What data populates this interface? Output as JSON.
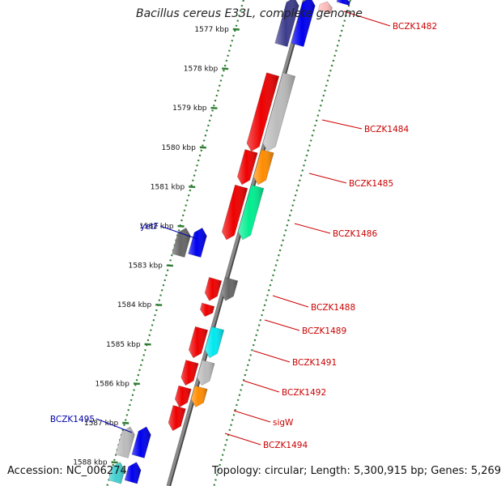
{
  "title": "Bacillus cereus E33L, complete genome",
  "footer": {
    "accession": "Accession: NC_006274",
    "topology": "Topology: circular; Length: 5,300,915 bp; Genes: 5,269"
  },
  "colors": {
    "background": "#ffffff",
    "backbone": "#8a8a8a",
    "tick": "#2e7d32",
    "gene_label_red": "#cc0000",
    "gene_label_blue": "#0000aa"
  },
  "kbp_ticks": [
    "1577 kbp",
    "1578 kbp",
    "1579 kbp",
    "1580 kbp",
    "1581 kbp",
    "1582 kbp",
    "1583 kbp",
    "1584 kbp",
    "1585 kbp",
    "1586 kbp",
    "1587 kbp",
    "1588 kbp"
  ],
  "gene_labels": [
    {
      "text": "BCZK1482",
      "color": "red"
    },
    {
      "text": "BCZK1484",
      "color": "red"
    },
    {
      "text": "BCZK1485",
      "color": "red"
    },
    {
      "text": "BCZK1486",
      "color": "red"
    },
    {
      "text": "BCZK1488",
      "color": "red"
    },
    {
      "text": "BCZK1489",
      "color": "red"
    },
    {
      "text": "BCZK1491",
      "color": "red"
    },
    {
      "text": "BCZK1492",
      "color": "red"
    },
    {
      "text": "sigW",
      "color": "red"
    },
    {
      "text": "BCZK1494",
      "color": "red"
    },
    {
      "text": "yetF",
      "color": "blue"
    },
    {
      "text": "BCZK1495",
      "color": "blue"
    }
  ],
  "features": [
    {
      "lane": "rev",
      "from": 1576.2,
      "to": 1577.4,
      "color": "#3c3c8c",
      "dir": "up"
    },
    {
      "lane": "fwd",
      "from": 1576.2,
      "to": 1577.4,
      "color": "#0000ee",
      "dir": "up"
    },
    {
      "lane": "outer",
      "from": 1576.2,
      "to": 1576.35,
      "color": "#0000ee",
      "dir": "up"
    },
    {
      "lane": "outer2",
      "from": 1576.3,
      "to": 1576.55,
      "color": "#ffbcbc",
      "dir": "up"
    },
    {
      "lane": "rev",
      "from": 1578.15,
      "to": 1580.1,
      "color": "#ee0000",
      "dir": "down"
    },
    {
      "lane": "fwd",
      "from": 1578.15,
      "to": 1580.1,
      "color": "#bbbbbb",
      "dir": "down"
    },
    {
      "lane": "rev",
      "from": 1580.1,
      "to": 1580.95,
      "color": "#ee0000",
      "dir": "down"
    },
    {
      "lane": "fwd",
      "from": 1580.1,
      "to": 1580.95,
      "color": "#ff8c00",
      "dir": "down"
    },
    {
      "lane": "rev",
      "from": 1581.0,
      "to": 1582.35,
      "color": "#ee0000",
      "dir": "down"
    },
    {
      "lane": "fwd",
      "from": 1581.0,
      "to": 1582.35,
      "color": "#00ee90",
      "dir": "down"
    },
    {
      "lane": "out_rev",
      "from": 1582.05,
      "to": 1582.75,
      "color": "#666666",
      "dir": "up"
    },
    {
      "lane": "out_fwd",
      "from": 1582.05,
      "to": 1582.75,
      "color": "#0000ee",
      "dir": "up"
    },
    {
      "lane": "rev",
      "from": 1583.35,
      "to": 1583.9,
      "color": "#ee0000",
      "dir": "down"
    },
    {
      "lane": "fwd",
      "from": 1583.35,
      "to": 1583.9,
      "color": "#666666",
      "dir": "down"
    },
    {
      "lane": "rev",
      "from": 1584.0,
      "to": 1584.3,
      "color": "#ee0000",
      "dir": "down"
    },
    {
      "lane": "rev",
      "from": 1584.6,
      "to": 1585.35,
      "color": "#ee0000",
      "dir": "down"
    },
    {
      "lane": "fwd",
      "from": 1584.6,
      "to": 1585.35,
      "color": "#00e8f0",
      "dir": "down"
    },
    {
      "lane": "rev",
      "from": 1585.45,
      "to": 1586.05,
      "color": "#ee0000",
      "dir": "down"
    },
    {
      "lane": "fwd",
      "from": 1585.45,
      "to": 1586.05,
      "color": "#bbbbbb",
      "dir": "down"
    },
    {
      "lane": "rev",
      "from": 1586.1,
      "to": 1586.6,
      "color": "#ee0000",
      "dir": "down"
    },
    {
      "lane": "fwd",
      "from": 1586.1,
      "to": 1586.6,
      "color": "#ff8c00",
      "dir": "down"
    },
    {
      "lane": "rev",
      "from": 1586.6,
      "to": 1587.2,
      "color": "#ee0000",
      "dir": "down"
    },
    {
      "lane": "out_rev",
      "from": 1587.1,
      "to": 1587.85,
      "color": "#bbbbbb",
      "dir": "up"
    },
    {
      "lane": "out_fwd",
      "from": 1587.1,
      "to": 1587.85,
      "color": "#0000ee",
      "dir": "up"
    },
    {
      "lane": "out_rev",
      "from": 1588.0,
      "to": 1588.5,
      "color": "#40d0d0",
      "dir": "up"
    },
    {
      "lane": "out_fwd",
      "from": 1588.0,
      "to": 1588.5,
      "color": "#0000ee",
      "dir": "up"
    }
  ]
}
